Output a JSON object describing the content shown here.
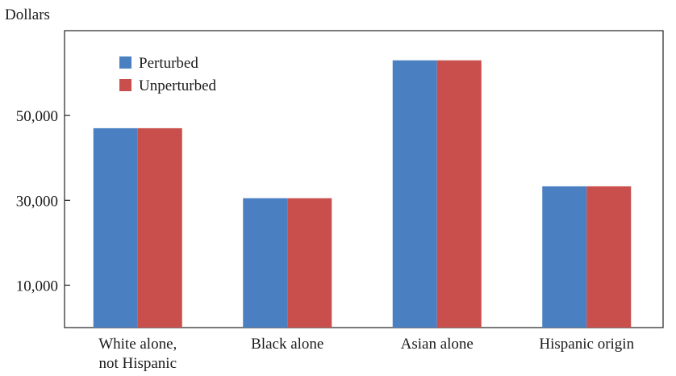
{
  "chart_data": {
    "type": "bar",
    "title": "",
    "ylabel": "Dollars",
    "xlabel": "",
    "categories": [
      [
        "White alone,",
        "not Hispanic"
      ],
      [
        "Black alone"
      ],
      [
        "Asian alone"
      ],
      [
        "Hispanic origin"
      ]
    ],
    "series": [
      {
        "name": "Perturbed",
        "color": "#4a7fc1",
        "values": [
          47000,
          30500,
          63000,
          33300
        ]
      },
      {
        "name": "Unperturbed",
        "color": "#c84f4c",
        "values": [
          47000,
          30500,
          63000,
          33300
        ]
      }
    ],
    "ylim": [
      0,
      70000
    ],
    "yticks": [
      10000,
      30000,
      50000
    ],
    "ytick_labels": [
      "10,000",
      "30,000",
      "50,000"
    ],
    "grid": false,
    "legend_position": "top-left"
  }
}
